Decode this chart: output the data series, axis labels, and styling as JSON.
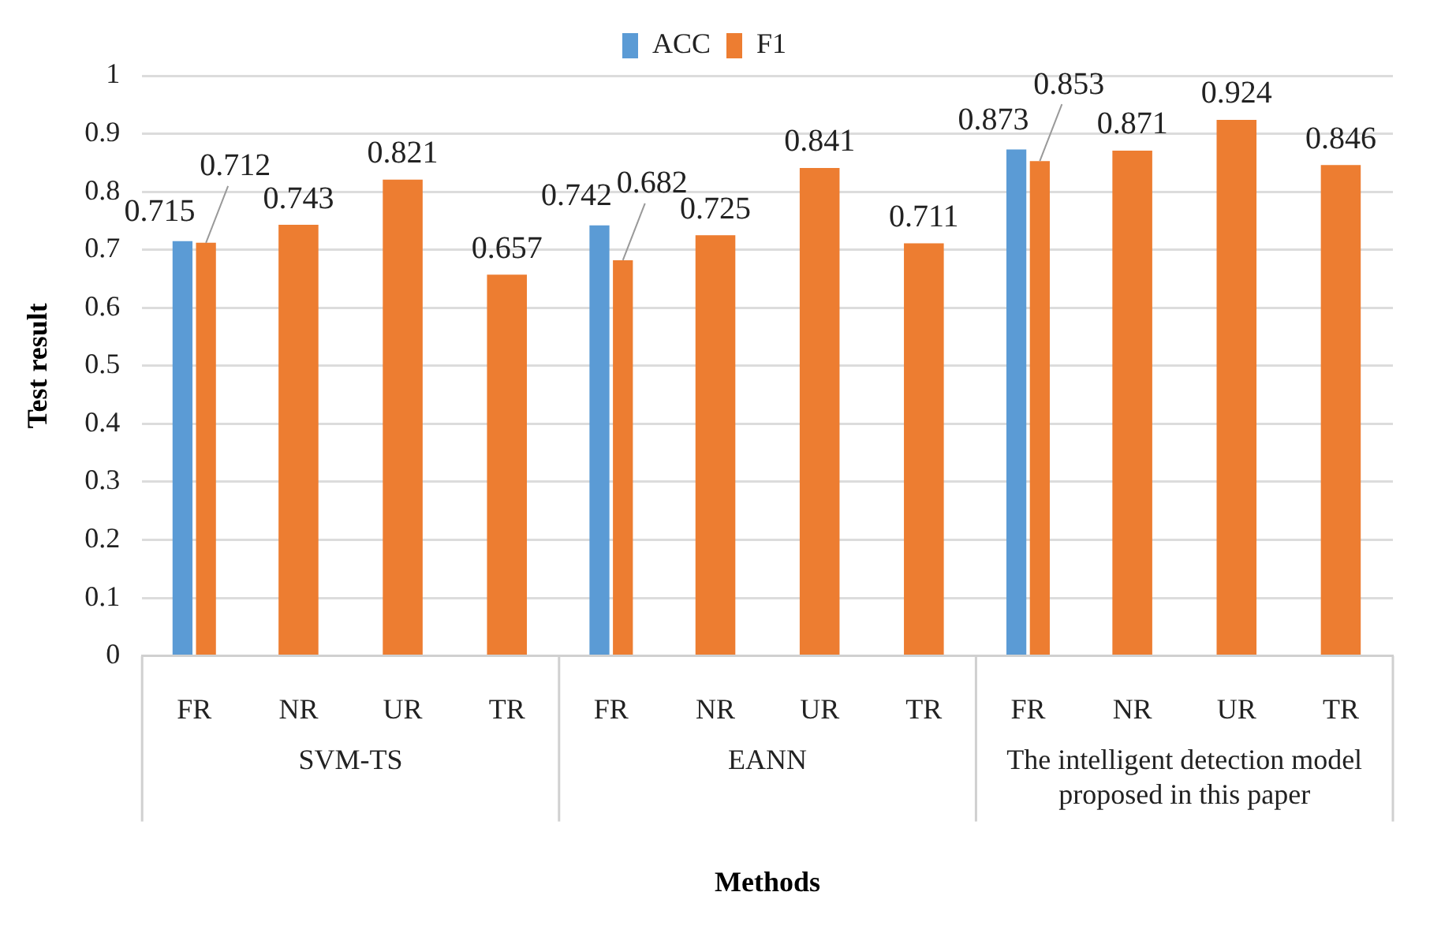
{
  "chart_data": {
    "type": "bar",
    "xlabel": "Methods",
    "ylabel": "Test result",
    "categories": [
      "FR",
      "NR",
      "UR",
      "TR",
      "FR",
      "NR",
      "UR",
      "TR",
      "FR",
      "NR",
      "UR",
      "TR"
    ],
    "annotations": [
      "SVM-TS",
      "EANN",
      "The intelligent detection model proposed in this paper"
    ],
    "series": [
      {
        "name": "ACC",
        "color": "#5b9bd5",
        "values": [
          0.715,
          null,
          null,
          null,
          0.742,
          null,
          null,
          null,
          0.873,
          null,
          null,
          null
        ]
      },
      {
        "name": "F1",
        "color": "#ed7d31",
        "values": [
          0.712,
          0.743,
          0.821,
          0.657,
          0.682,
          0.725,
          0.841,
          0.711,
          0.853,
          0.871,
          0.924,
          0.846
        ]
      }
    ],
    "ylim": [
      0,
      1
    ],
    "yticks": [
      0,
      0.1,
      0.2,
      0.3,
      0.4,
      0.5,
      0.6,
      0.7,
      0.8,
      0.9,
      1
    ],
    "grid": "y",
    "legend": "top",
    "data_labels": true
  }
}
